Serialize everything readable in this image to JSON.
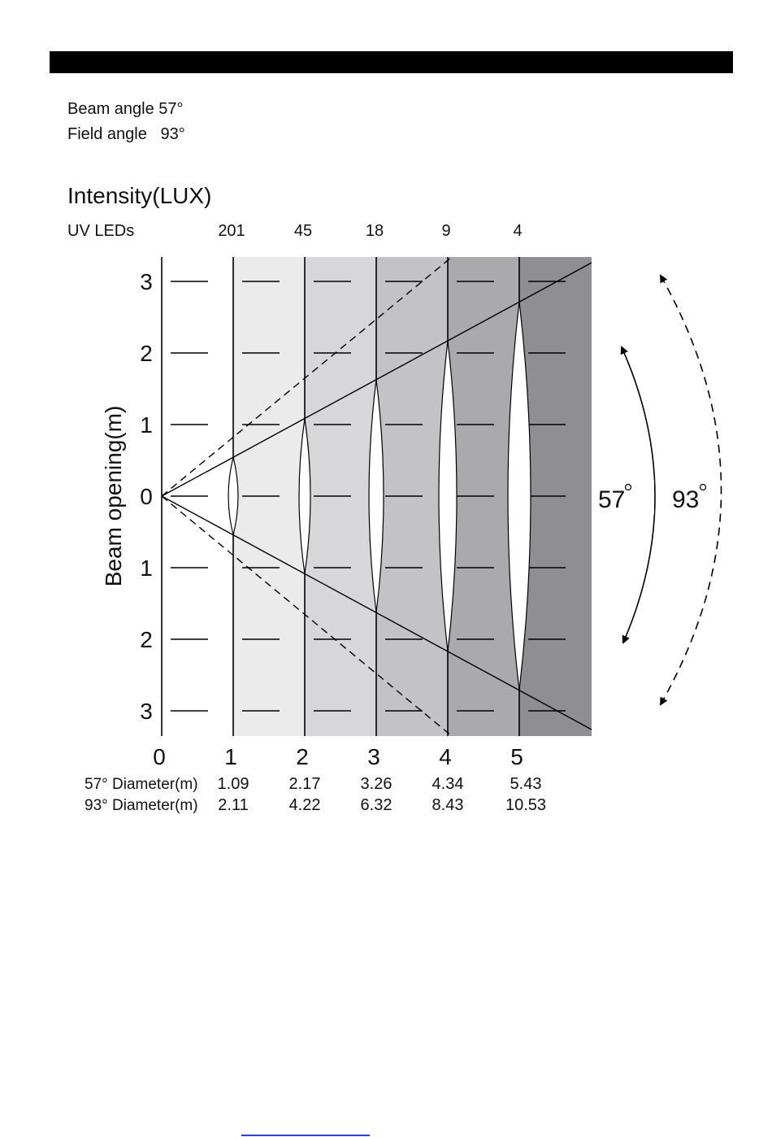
{
  "specs": {
    "beam_angle": "Beam angle 57°",
    "field_angle": "Field angle   93°"
  },
  "diagram": {
    "title": "Intensity(LUX)",
    "intensity_label": "UV LEDs",
    "intensities": [
      "201",
      "45",
      "18",
      "9",
      "4"
    ],
    "y_axis_label": "Beam opening(m)",
    "y_ticks": [
      "3",
      "2",
      "1",
      "0",
      "1",
      "2",
      "3"
    ],
    "x_ticks": [
      "0",
      "1",
      "2",
      "3",
      "4",
      "5"
    ],
    "beam_angle_label": "57",
    "field_angle_label": "93",
    "diameter_rows": [
      {
        "label": "57° Diameter(m)",
        "values": [
          "1.09",
          "2.17",
          "3.26",
          "4.34",
          "5.43"
        ]
      },
      {
        "label": "93° Diameter(m)",
        "values": [
          "2.11",
          "4.22",
          "6.32",
          "8.43",
          "10.53"
        ]
      }
    ]
  }
}
